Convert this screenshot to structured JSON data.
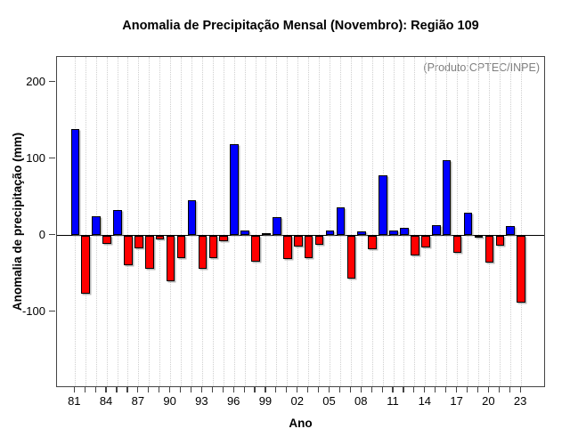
{
  "chart_data": {
    "type": "bar",
    "title": "Anomalia de Precipitação Mensal (Novembro): Região 109",
    "xlabel": "Ano",
    "ylabel": "Anomalia de precipitação (mm)",
    "annotation": "(Produto:CPTEC/INPE)",
    "years": [
      1981,
      1982,
      1983,
      1984,
      1985,
      1986,
      1987,
      1988,
      1989,
      1990,
      1991,
      1992,
      1993,
      1994,
      1995,
      1996,
      1997,
      1998,
      1999,
      2000,
      2001,
      2002,
      2003,
      2004,
      2005,
      2006,
      2007,
      2008,
      2009,
      2010,
      2011,
      2012,
      2013,
      2014,
      2015,
      2016,
      2017,
      2018,
      2019,
      2020,
      2021,
      2022,
      2023
    ],
    "values": [
      139,
      -76,
      25,
      -11,
      33,
      -39,
      -17,
      -44,
      -5,
      -60,
      -30,
      46,
      -44,
      -30,
      -8,
      120,
      6,
      -34,
      3,
      24,
      -31,
      -14,
      -30,
      -12,
      6,
      37,
      -56,
      5,
      -18,
      79,
      6,
      10,
      -26,
      -16,
      13,
      98,
      -23,
      30,
      -3,
      -35,
      -13,
      12,
      -88
    ],
    "x_tick_labels": [
      "81",
      "84",
      "87",
      "90",
      "93",
      "96",
      "99",
      "02",
      "05",
      "08",
      "11",
      "14",
      "17",
      "20",
      "23"
    ],
    "x_label_every": 3,
    "yticks": [
      200,
      100,
      0,
      -100
    ],
    "ylim": [
      -200,
      234
    ],
    "grid": "vertical-dotted-per-year",
    "legend_position": "none",
    "colors": {
      "positive": "#0000FF",
      "negative": "#FF0000",
      "annotation_text": "#7F7F7F"
    }
  }
}
